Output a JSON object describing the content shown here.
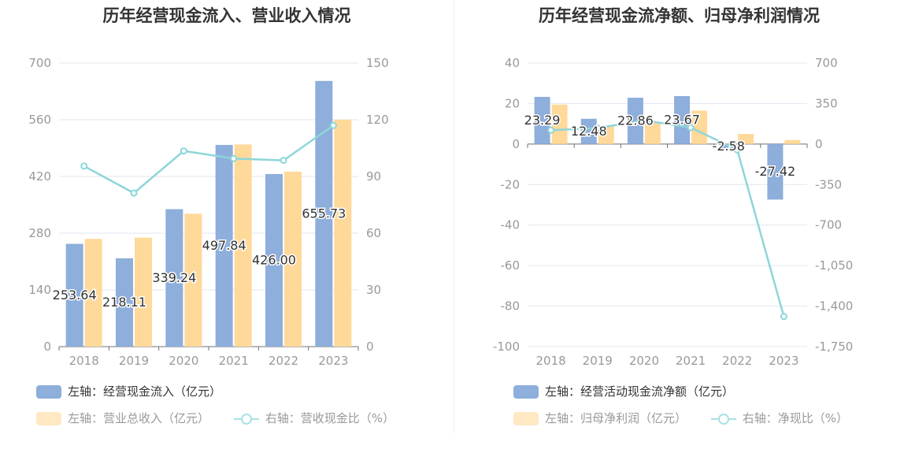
{
  "colors": {
    "blue": "#8eaedb",
    "orange": "#ffd99a",
    "line": "#8dd6d8",
    "grid": "#e3e6ef",
    "axisText": "#999999",
    "label": "#333333"
  },
  "chart_data": [
    {
      "type": "bar",
      "title": "历年经营现金流入、营业收入情况",
      "categories": [
        "2018",
        "2019",
        "2020",
        "2021",
        "2022",
        "2023"
      ],
      "series": [
        {
          "name": "左轴：经营现金流入（亿元）",
          "axis": "left",
          "values": [
            253.64,
            218.11,
            339.24,
            497.84,
            426.0,
            655.73
          ],
          "labels": [
            "253.64",
            "218.11",
            "339.24",
            "497.84",
            "426.00",
            "655.73"
          ]
        },
        {
          "name": "左轴：营业总收入（亿元）",
          "axis": "left",
          "values": [
            266,
            269,
            328,
            499,
            432,
            560
          ]
        },
        {
          "name": "右轴：营收现金比（%）",
          "axis": "right",
          "type": "line",
          "values": [
            95.5,
            81.2,
            103.5,
            99.5,
            98.5,
            117.0
          ]
        }
      ],
      "y_left": {
        "min": 0,
        "max": 700,
        "ticks": [
          "0",
          "140",
          "280",
          "420",
          "560",
          "700"
        ]
      },
      "y_right": {
        "min": 0,
        "max": 150,
        "ticks": [
          "0",
          "30",
          "60",
          "90",
          "120",
          "150"
        ]
      },
      "legend_placement": "bottom"
    },
    {
      "type": "bar",
      "title": "历年经营现金流净额、归母净利润情况",
      "categories": [
        "2018",
        "2019",
        "2020",
        "2021",
        "2022",
        "2023"
      ],
      "series": [
        {
          "name": "左轴：经营活动现金流净额（亿元）",
          "axis": "left",
          "values": [
            23.29,
            12.48,
            22.86,
            23.67,
            -2.58,
            -27.42
          ],
          "labels": [
            "23.29",
            "12.48",
            "22.86",
            "23.67",
            "-2.58",
            "-27.42"
          ]
        },
        {
          "name": "左轴：归母净利润（亿元）",
          "axis": "left",
          "values": [
            19.5,
            9.0,
            11.0,
            16.5,
            5.0,
            2.0
          ]
        },
        {
          "name": "右轴：净现比（%）",
          "axis": "right",
          "type": "line",
          "values": [
            120,
            138,
            205,
            142,
            -50,
            -1490
          ]
        }
      ],
      "y_left": {
        "min": -100,
        "max": 40,
        "ticks": [
          "-100",
          "-80",
          "-60",
          "-40",
          "-20",
          "0",
          "20",
          "40"
        ]
      },
      "y_right": {
        "min": -1750,
        "max": 700,
        "ticks": [
          "-1,750",
          "-1,400",
          "-1,050",
          "-700",
          "-350",
          "0",
          "350",
          "700"
        ]
      },
      "legend_placement": "bottom"
    }
  ]
}
